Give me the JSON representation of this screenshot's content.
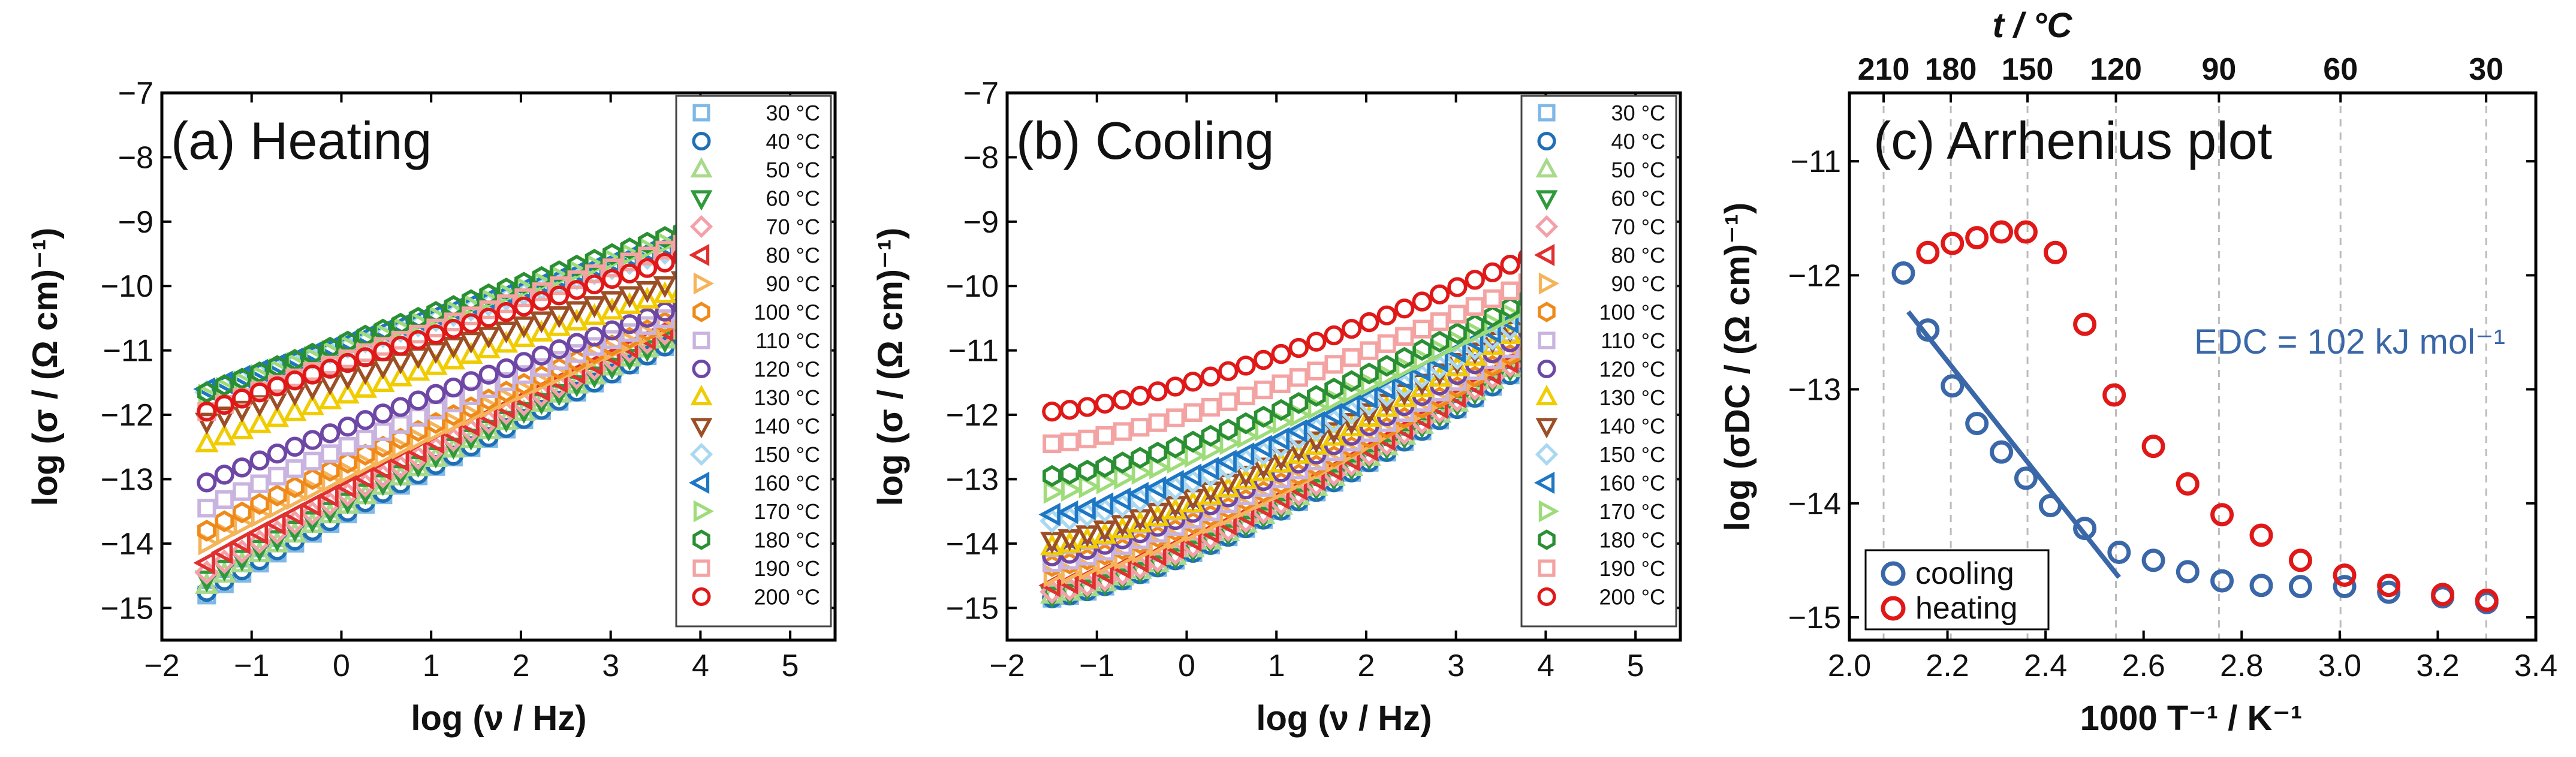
{
  "figure": {
    "temps_c": [
      30,
      40,
      50,
      60,
      70,
      80,
      90,
      100,
      110,
      120,
      130,
      140,
      150,
      160,
      170,
      180,
      190,
      200
    ],
    "temp_labels": [
      "30 °C",
      "40 °C",
      "50 °C",
      "60 °C",
      "70 °C",
      "80 °C",
      "90 °C",
      "100 °C",
      "110 °C",
      "120 °C",
      "130 °C",
      "140 °C",
      "150 °C",
      "160 °C",
      "170 °C",
      "180 °C",
      "190 °C",
      "200 °C"
    ],
    "temp_colors": [
      "#7fb8e6",
      "#1f6fb5",
      "#a9d98b",
      "#2e9a3a",
      "#f4a0a9",
      "#e03030",
      "#f5b45a",
      "#ef8a1a",
      "#c9b3df",
      "#6e47a6",
      "#f0cc00",
      "#9c4f26",
      "#a9d8f0",
      "#1e77c4",
      "#9edc7a",
      "#2a8f33",
      "#f4a3a3",
      "#e01818"
    ],
    "temp_markers": [
      "square",
      "circle",
      "triangle-up",
      "triangle-down",
      "diamond",
      "triangle-left",
      "triangle-right",
      "hexagon",
      "square",
      "circle",
      "triangle-up",
      "triangle-down",
      "diamond",
      "triangle-left",
      "triangle-right",
      "hexagon",
      "square",
      "circle"
    ]
  },
  "chart_data": [
    {
      "type": "scatter",
      "title": "(a) Heating",
      "xlabel": "log (ν / Hz)",
      "ylabel": "log (σ / (Ω cm)⁻¹)",
      "xlim": [
        -2,
        5.5
      ],
      "ylim": [
        -15.5,
        -7
      ],
      "xticks": [
        -2,
        -1,
        0,
        1,
        2,
        3,
        4,
        5
      ],
      "yticks": [
        -15,
        -14,
        -13,
        -12,
        -11,
        -10,
        -9,
        -8,
        -7
      ],
      "x_range": [
        -1.5,
        3.8
      ],
      "series_start_values": [
        -14.8,
        -14.75,
        -14.65,
        -14.55,
        -14.45,
        -14.3,
        -14.0,
        -13.8,
        -13.45,
        -13.05,
        -12.45,
        -12.1,
        -11.65,
        -11.6,
        -11.7,
        -11.65,
        -11.95,
        -11.95
      ],
      "series_end_values": [
        -10.8,
        -10.8,
        -10.7,
        -10.7,
        -10.6,
        -10.55,
        -10.5,
        -10.45,
        -10.4,
        -10.3,
        -10.05,
        -9.9,
        -9.4,
        -9.3,
        -9.25,
        -9.15,
        -9.35,
        -9.55
      ]
    },
    {
      "type": "scatter",
      "title": "(b) Cooling",
      "xlabel": "log (ν / Hz)",
      "ylabel": "log (σ / (Ω cm)⁻¹)",
      "xlim": [
        -2,
        5.5
      ],
      "ylim": [
        -15.5,
        -7
      ],
      "xticks": [
        -2,
        -1,
        0,
        1,
        2,
        3,
        4,
        5
      ],
      "yticks": [
        -15,
        -14,
        -13,
        -12,
        -11,
        -10,
        -9,
        -8,
        -7
      ],
      "x_range": [
        -1.5,
        3.8
      ],
      "series_start_values": [
        -14.85,
        -14.85,
        -14.8,
        -14.8,
        -14.75,
        -14.65,
        -14.5,
        -14.35,
        -14.3,
        -14.2,
        -14.05,
        -13.95,
        -13.65,
        -13.55,
        -13.2,
        -12.95,
        -12.45,
        -11.95
      ],
      "series_end_values": [
        -11.2,
        -11.2,
        -11.1,
        -11.1,
        -11.05,
        -11.0,
        -10.9,
        -10.9,
        -10.8,
        -10.7,
        -10.6,
        -10.5,
        -10.5,
        -10.4,
        -10.3,
        -10.2,
        -9.95,
        -9.55
      ]
    },
    {
      "type": "scatter",
      "title": "(c) Arrhenius plot",
      "xlabel": "1000 T⁻¹ / K⁻¹",
      "ylabel": "log (σDC / (Ω cm)⁻¹)",
      "top_xlabel": "t / °C",
      "annotation": "EDC = 102 kJ mol⁻¹",
      "xlim": [
        2.0,
        3.4
      ],
      "ylim": [
        -15.2,
        -10.4
      ],
      "xticks": [
        2.0,
        2.2,
        2.4,
        2.6,
        2.8,
        3.0,
        3.2,
        3.4
      ],
      "yticks": [
        -15,
        -14,
        -13,
        -12,
        -11
      ],
      "top_ticks_c": [
        210,
        180,
        150,
        120,
        90,
        60,
        30
      ],
      "series": [
        {
          "name": "cooling",
          "color": "#3a67a8",
          "x": [
            2.11,
            2.16,
            2.21,
            2.26,
            2.31,
            2.36,
            2.41,
            2.48,
            2.55,
            2.62,
            2.69,
            2.76,
            2.84,
            2.92,
            3.01,
            3.1,
            3.21,
            3.3
          ],
          "y": [
            -11.98,
            -12.48,
            -12.97,
            -13.3,
            -13.55,
            -13.78,
            -14.02,
            -14.22,
            -14.43,
            -14.5,
            -14.6,
            -14.68,
            -14.72,
            -14.73,
            -14.73,
            -14.78,
            -14.82,
            -14.87
          ]
        },
        {
          "name": "heating",
          "color": "#e01818",
          "x": [
            2.16,
            2.21,
            2.26,
            2.31,
            2.36,
            2.42,
            2.48,
            2.54,
            2.62,
            2.69,
            2.76,
            2.84,
            2.92,
            3.01,
            3.1,
            3.21,
            3.3
          ],
          "y": [
            -11.8,
            -11.72,
            -11.67,
            -11.62,
            -11.62,
            -11.8,
            -12.43,
            -13.05,
            -13.5,
            -13.83,
            -14.1,
            -14.28,
            -14.5,
            -14.63,
            -14.72,
            -14.8,
            -14.85
          ]
        }
      ],
      "fit_line": {
        "x": [
          2.12,
          2.55
        ],
        "y": [
          -12.32,
          -14.65
        ]
      }
    }
  ]
}
